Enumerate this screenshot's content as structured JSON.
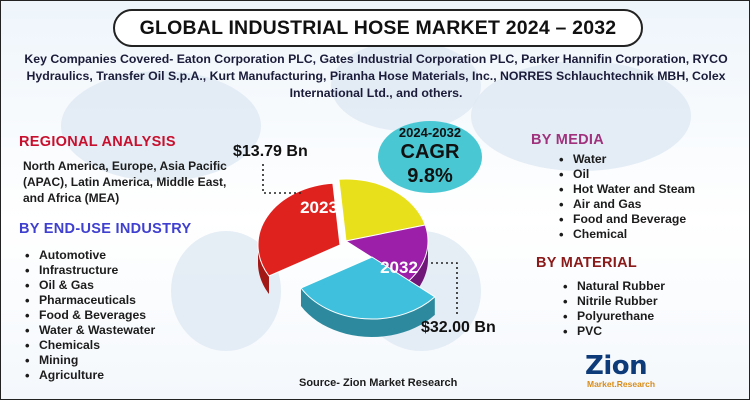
{
  "title": "GLOBAL INDUSTRIAL HOSE MARKET 2024 – 2032",
  "companies_text": "Key Companies Covered- Eaton Corporation PLC, Gates Industrial Corporation PLC, Parker Hannifin Corporation, RYCO Hydraulics, Transfer Oil S.p.A., Kurt Manufacturing, Piranha Hose Materials, Inc., NORRES Schlauchtechnik MBH, Colex International Ltd., and others.",
  "regional": {
    "heading": "REGIONAL ANALYSIS",
    "text": "North America, Europe, Asia Pacific (APAC), Latin America, Middle East, and Africa (MEA)"
  },
  "end_use": {
    "heading": "BY END-USE INDUSTRY",
    "items": [
      "Automotive",
      "Infrastructure",
      "Oil & Gas",
      "Pharmaceuticals",
      "Food & Beverages",
      "Water & Wastewater",
      "Chemicals",
      "Mining",
      "Agriculture"
    ]
  },
  "media": {
    "heading": "BY MEDIA",
    "items": [
      "Water",
      "Oil",
      "Hot Water and Steam",
      "Air and Gas",
      "Food and Beverage",
      "Chemical"
    ]
  },
  "material": {
    "heading": "BY MATERIAL",
    "items": [
      "Natural Rubber",
      "Nitrile Rubber",
      "Polyurethane",
      "PVC"
    ]
  },
  "cagr": {
    "period": "2024-2032",
    "label": "CAGR",
    "rate": "9.8%"
  },
  "source": "Source- Zion Market Research",
  "logo": {
    "main": "Zion",
    "sub": "Market.Research"
  },
  "colors": {
    "title_red": "#c8102e",
    "title_blue": "#3f3fd0",
    "title_purple": "#a0327d",
    "cagr_bg": "#49c8d4"
  },
  "chart_data": {
    "type": "pie",
    "title": "",
    "categories": [
      "2023",
      "2032"
    ],
    "values": [
      13.79,
      32.0
    ],
    "value_labels": [
      "$13.79 Bn",
      "$32.00 Bn"
    ],
    "slice_colors": [
      "#e8e01a",
      "#e0221f",
      "#9b1fa8",
      "#3fc0dc"
    ],
    "unit": "USD Billion"
  }
}
